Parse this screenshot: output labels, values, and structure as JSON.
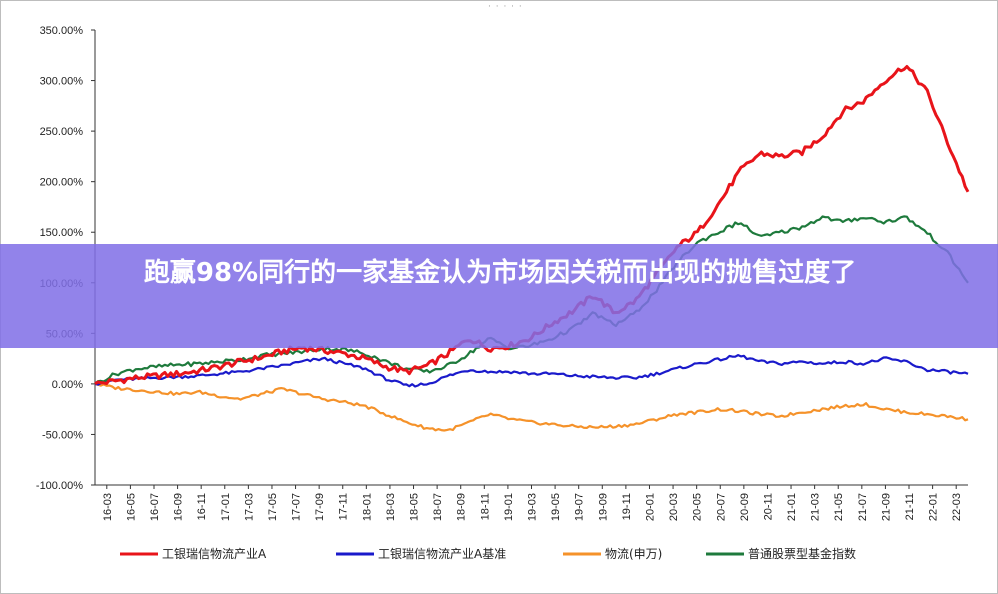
{
  "banner": {
    "title": "跑赢98%同行的一家基金认为市场因关税而出现的抛售过度了"
  },
  "window": {
    "grip": "· · · · ·"
  },
  "colors": {
    "red": "#e8141a",
    "blue": "#1a1acb",
    "orange": "#f5922a",
    "green": "#1e7a3c",
    "axis": "#333333"
  },
  "chart_data": {
    "type": "line",
    "title": "",
    "xlabel": "",
    "ylabel": "",
    "ylim": [
      -100,
      350
    ],
    "yticks": [
      "350.00%",
      "300.00%",
      "250.00%",
      "200.00%",
      "150.00%",
      "100.00%",
      "50.00%",
      "0.00%",
      "-50.00%",
      "-100.00%"
    ],
    "ytick_values": [
      350,
      300,
      250,
      200,
      150,
      100,
      50,
      0,
      -50,
      -100
    ],
    "xticks": [
      "16-03",
      "16-05",
      "16-07",
      "16-09",
      "16-11",
      "17-01",
      "17-03",
      "17-05",
      "17-07",
      "17-09",
      "17-11",
      "18-01",
      "18-03",
      "18-05",
      "18-07",
      "18-09",
      "18-11",
      "19-01",
      "19-03",
      "19-05",
      "19-07",
      "19-09",
      "19-11",
      "20-01",
      "20-03",
      "20-05",
      "20-07",
      "20-09",
      "20-11",
      "21-01",
      "21-03",
      "21-05",
      "21-07",
      "21-09",
      "21-11",
      "22-01",
      "22-03"
    ],
    "legend_position": "bottom",
    "series": [
      {
        "name": "工银瑞信物流产业A",
        "color_key": "red",
        "values": [
          0,
          3,
          6,
          8,
          10,
          13,
          17,
          22,
          26,
          32,
          36,
          33,
          30,
          25,
          17,
          12,
          18,
          30,
          45,
          35,
          38,
          46,
          60,
          72,
          88,
          70,
          82,
          108,
          135,
          150,
          178,
          210,
          228,
          225,
          229,
          245,
          270,
          280,
          300,
          315,
          290,
          240,
          190
        ]
      },
      {
        "name": "工银瑞信物流产业A基准",
        "color_key": "blue",
        "values": [
          0,
          4,
          5,
          6,
          7,
          8,
          10,
          12,
          15,
          18,
          22,
          25,
          20,
          15,
          5,
          -2,
          0,
          8,
          14,
          12,
          12,
          10,
          10,
          8,
          7,
          6,
          6,
          10,
          15,
          20,
          24,
          28,
          22,
          20,
          22,
          20,
          22,
          20,
          25,
          22,
          14,
          12,
          10
        ]
      },
      {
        "name": "物流(申万)",
        "color_key": "orange",
        "values": [
          0,
          -4,
          -6,
          -8,
          -10,
          -8,
          -12,
          -15,
          -10,
          -5,
          -10,
          -15,
          -18,
          -22,
          -30,
          -38,
          -44,
          -46,
          -38,
          -30,
          -35,
          -38,
          -40,
          -42,
          -43,
          -42,
          -40,
          -35,
          -30,
          -28,
          -25,
          -27,
          -30,
          -32,
          -28,
          -25,
          -22,
          -20,
          -25,
          -28,
          -30,
          -32,
          -35
        ]
      },
      {
        "name": "普通股票型基金指数",
        "color_key": "green",
        "values": [
          0,
          10,
          15,
          17,
          19,
          20,
          22,
          24,
          28,
          30,
          32,
          35,
          34,
          30,
          22,
          15,
          12,
          18,
          30,
          45,
          35,
          38,
          45,
          55,
          70,
          58,
          70,
          92,
          120,
          140,
          150,
          160,
          145,
          150,
          155,
          165,
          160,
          165,
          160,
          165,
          150,
          130,
          100
        ]
      }
    ]
  }
}
